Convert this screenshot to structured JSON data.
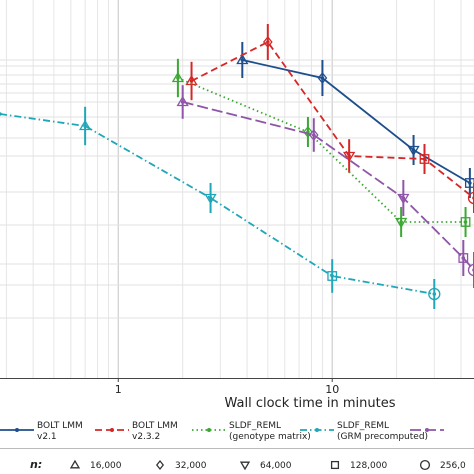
{
  "chart_data": {
    "type": "line",
    "xlabel": "Wall clock time in minutes",
    "xscale": "log",
    "x_ticks": [
      {
        "value": 1,
        "label": "1"
      },
      {
        "value": 10,
        "label": "10"
      }
    ],
    "x_minor_ticks": [
      0.3,
      0.4,
      0.5,
      0.6,
      0.7,
      0.8,
      0.9,
      2,
      3,
      4,
      5,
      6,
      7,
      8,
      9,
      20,
      30,
      40
    ],
    "xlim": [
      0.28,
      46
    ],
    "y_gridlines": [
      1.0,
      1.55,
      1.9,
      2.55,
      3.1,
      3.7,
      4.0,
      4.35,
      4.6,
      4.75,
      4.9,
      5.05,
      5.2,
      5.3
    ],
    "ylim": [
      0,
      6.3
    ],
    "y_range_note": "y axis unlabeled in the visible crop",
    "series": [
      {
        "name": "BOLT LMM v2.1",
        "name_line1": "BOLT LMM",
        "name_line2": "v2.1",
        "color": "#1f4e8c",
        "dash": "solid",
        "points": [
          {
            "x": 3.8,
            "y": 5.3,
            "err": 0.3,
            "marker": "triangle"
          },
          {
            "x": 9.0,
            "y": 5.0,
            "err": 0.3,
            "marker": "diamond"
          },
          {
            "x": 24.0,
            "y": 3.8,
            "err": 0.25,
            "marker": "triangle-down"
          },
          {
            "x": 44.0,
            "y": 3.25,
            "err": 0.25,
            "marker": "square"
          }
        ]
      },
      {
        "name": "BOLT LMM v2.3.2",
        "name_line1": "BOLT LMM",
        "name_line2": "v2.3.2",
        "color": "#d62728",
        "dash": "dashed",
        "points": [
          {
            "x": 2.2,
            "y": 4.95,
            "err": 0.32,
            "marker": "triangle"
          },
          {
            "x": 5.0,
            "y": 5.6,
            "err": 0.3,
            "marker": "diamond"
          },
          {
            "x": 12.0,
            "y": 3.7,
            "err": 0.28,
            "marker": "triangle-down"
          },
          {
            "x": 27.0,
            "y": 3.65,
            "err": 0.25,
            "marker": "square"
          },
          {
            "x": 46.0,
            "y": 3.0,
            "err": 0.25,
            "marker": "circle"
          }
        ]
      },
      {
        "name": "SLDF_REML (genotype matrix)",
        "name_line1": "SLDF_REML",
        "name_line2": "(genotype matrix)",
        "color": "#3aa832",
        "dash": "dotted",
        "points": [
          {
            "x": 1.9,
            "y": 5.0,
            "err": 0.32,
            "marker": "triangle"
          },
          {
            "x": 7.7,
            "y": 4.1,
            "err": 0.25,
            "marker": "diamond"
          },
          {
            "x": 21.0,
            "y": 2.6,
            "err": 0.25,
            "marker": "triangle-down"
          },
          {
            "x": 42.0,
            "y": 2.6,
            "err": 0.25,
            "marker": "square"
          }
        ]
      },
      {
        "name": "SLDF_REML (GRM precomputed)",
        "name_line1": "SLDF_REML",
        "name_line2": "(GRM precomputed)",
        "color": "#1fa6b8",
        "dash": "dashdot",
        "points": [
          {
            "x": 0.28,
            "y": 4.4,
            "err": 0,
            "marker": "none"
          },
          {
            "x": 0.7,
            "y": 4.2,
            "err": 0.32,
            "marker": "triangle"
          },
          {
            "x": 2.7,
            "y": 3.0,
            "err": 0.25,
            "marker": "triangle-down"
          },
          {
            "x": 10.0,
            "y": 1.7,
            "err": 0.28,
            "marker": "square"
          },
          {
            "x": 30.0,
            "y": 1.4,
            "err": 0.25,
            "marker": "circle"
          }
        ]
      },
      {
        "name": "",
        "color": "#8e55a8",
        "dash": "longdash",
        "points": [
          {
            "x": 2.0,
            "y": 4.6,
            "err": 0.28,
            "marker": "triangle"
          },
          {
            "x": 8.2,
            "y": 4.05,
            "err": 0.28,
            "marker": "diamond"
          },
          {
            "x": 21.5,
            "y": 3.0,
            "err": 0.3,
            "marker": "triangle-down"
          },
          {
            "x": 41.0,
            "y": 2.0,
            "err": 0.3,
            "marker": "square"
          },
          {
            "x": 46.0,
            "y": 1.8,
            "err": 0.3,
            "marker": "circle"
          }
        ]
      }
    ],
    "size_legend": {
      "label": "n:",
      "items": [
        {
          "value": "16,000",
          "marker": "triangle"
        },
        {
          "value": "32,000",
          "marker": "diamond"
        },
        {
          "value": "64,000",
          "marker": "triangle-down"
        },
        {
          "value": "128,000",
          "marker": "square"
        },
        {
          "value": "256,0",
          "marker": "circle"
        }
      ]
    },
    "legend_placement": "bottom",
    "grid": true
  }
}
